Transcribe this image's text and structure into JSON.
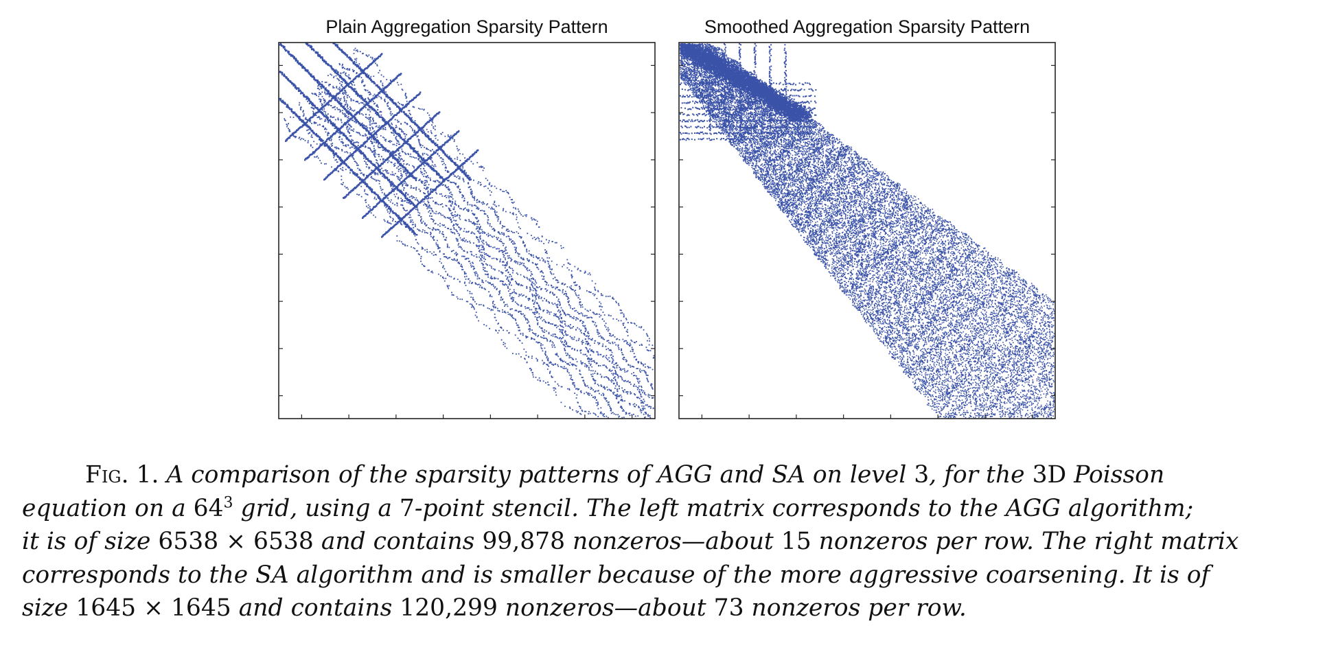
{
  "figure": {
    "panels": [
      {
        "title": "Plain Aggregation Sparsity Pattern",
        "matrix_size": 6538,
        "nonzeros": 99878,
        "x_tick_count": 8,
        "y_tick_count": 8,
        "color": "#3a52a8"
      },
      {
        "title": "Smoothed Aggregation Sparsity Pattern",
        "matrix_size": 1645,
        "nonzeros": 120299,
        "x_tick_count": 8,
        "y_tick_count": 8,
        "color": "#3a52a8"
      }
    ],
    "caption": {
      "label": "Fig. 1.",
      "lines": [
        {
          "a": "A comparison of the sparsity patterns of AGG and SA on level",
          "b": "3",
          "c": ", for the",
          "d": "3D",
          "e": "Poisson"
        },
        {
          "a": "equation on a",
          "b": "64",
          "sup": "3",
          "c": "grid, using a",
          "d": "7",
          "e": "-point stencil. The left matrix corresponds to the AGG algorithm;"
        },
        {
          "a": "it is of size",
          "b": "6538 × 6538",
          "c": "and contains",
          "d": "99,878",
          "e": "nonzeros—about",
          "f": "15",
          "g": "nonzeros per row. The right matrix"
        },
        {
          "a": "corresponds to the SA algorithm and is smaller because of the more aggressive coarsening. It is of"
        },
        {
          "a": "size",
          "b": "1645 × 1645",
          "c": "and contains",
          "d": "120,299",
          "e": "nonzeros—about",
          "f": "73",
          "g": "nonzeros per row."
        }
      ]
    }
  }
}
